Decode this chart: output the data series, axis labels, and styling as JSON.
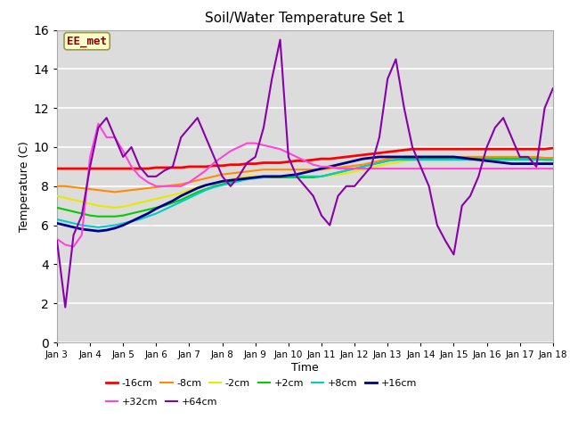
{
  "title": "Soil/Water Temperature Set 1",
  "xlabel": "Time",
  "ylabel": "Temperature (C)",
  "ylim": [
    0,
    16
  ],
  "yticks": [
    0,
    2,
    4,
    6,
    8,
    10,
    12,
    14,
    16
  ],
  "xtick_labels": [
    "Jan 3",
    "Jan 4",
    "Jan 5",
    "Jan 6",
    "Jan 7",
    "Jan 8",
    "Jan 9",
    "Jan 10",
    "Jan 11",
    "Jan 12",
    "Jan 13",
    "Jan 14",
    "Jan 15",
    "Jan 16",
    "Jan 17",
    "Jan 18"
  ],
  "bg_color": "#dcdcdc",
  "annotation_text": "EE_met",
  "annotation_color": "#8b0000",
  "annotation_bg": "#ffffcc",
  "colors": {
    "-16cm": "#ff0000",
    "-8cm": "#ff8c00",
    "-2cm": "#e8e800",
    "+2cm": "#00cc00",
    "+8cm": "#00cccc",
    "+16cm": "#00008b",
    "+32cm": "#ff44dd",
    "+64cm": "#8800aa"
  },
  "data_minus16": [
    8.9,
    8.9,
    8.9,
    8.9,
    8.9,
    8.9,
    8.9,
    8.9,
    8.9,
    8.9,
    8.9,
    8.9,
    8.95,
    8.95,
    8.95,
    8.95,
    9.0,
    9.0,
    9.0,
    9.05,
    9.05,
    9.1,
    9.1,
    9.15,
    9.15,
    9.2,
    9.2,
    9.2,
    9.25,
    9.3,
    9.3,
    9.35,
    9.4,
    9.4,
    9.45,
    9.5,
    9.55,
    9.6,
    9.65,
    9.7,
    9.75,
    9.8,
    9.85,
    9.9,
    9.9,
    9.9,
    9.9,
    9.9,
    9.9,
    9.9,
    9.9,
    9.9,
    9.9,
    9.9,
    9.9,
    9.9,
    9.9,
    9.9,
    9.9,
    9.9,
    9.95
  ],
  "data_minus8": [
    8.0,
    8.0,
    7.95,
    7.9,
    7.85,
    7.8,
    7.75,
    7.7,
    7.75,
    7.8,
    7.85,
    7.9,
    7.95,
    8.0,
    8.05,
    8.1,
    8.2,
    8.3,
    8.4,
    8.5,
    8.6,
    8.65,
    8.7,
    8.75,
    8.8,
    8.85,
    8.85,
    8.85,
    8.85,
    8.85,
    8.85,
    8.85,
    8.85,
    8.9,
    8.95,
    9.0,
    9.05,
    9.1,
    9.2,
    9.3,
    9.4,
    9.45,
    9.5,
    9.5,
    9.5,
    9.5,
    9.5,
    9.5,
    9.5,
    9.5,
    9.5,
    9.5,
    9.5,
    9.5,
    9.5,
    9.5,
    9.5,
    9.5,
    9.5,
    9.45,
    9.45
  ],
  "data_minus2": [
    7.5,
    7.4,
    7.3,
    7.2,
    7.1,
    7.0,
    6.95,
    6.9,
    6.95,
    7.05,
    7.15,
    7.25,
    7.35,
    7.45,
    7.55,
    7.65,
    7.8,
    7.95,
    8.05,
    8.15,
    8.25,
    8.35,
    8.45,
    8.5,
    8.5,
    8.5,
    8.5,
    8.5,
    8.5,
    8.5,
    8.5,
    8.5,
    8.5,
    8.55,
    8.6,
    8.65,
    8.75,
    8.85,
    8.95,
    9.05,
    9.15,
    9.2,
    9.3,
    9.35,
    9.4,
    9.4,
    9.4,
    9.4,
    9.4,
    9.4,
    9.4,
    9.4,
    9.4,
    9.4,
    9.4,
    9.4,
    9.4,
    9.4,
    9.4,
    9.35,
    9.35
  ],
  "data_plus2": [
    6.9,
    6.8,
    6.7,
    6.6,
    6.5,
    6.45,
    6.45,
    6.45,
    6.5,
    6.6,
    6.7,
    6.8,
    6.9,
    7.0,
    7.15,
    7.3,
    7.5,
    7.7,
    7.85,
    8.0,
    8.1,
    8.2,
    8.3,
    8.4,
    8.45,
    8.45,
    8.45,
    8.45,
    8.45,
    8.45,
    8.45,
    8.45,
    8.5,
    8.6,
    8.7,
    8.8,
    8.9,
    9.0,
    9.1,
    9.2,
    9.3,
    9.35,
    9.4,
    9.4,
    9.4,
    9.4,
    9.4,
    9.4,
    9.4,
    9.4,
    9.4,
    9.4,
    9.4,
    9.4,
    9.4,
    9.4,
    9.4,
    9.4,
    9.4,
    9.35,
    9.35
  ],
  "data_plus8": [
    6.3,
    6.2,
    6.1,
    6.0,
    5.95,
    5.9,
    5.95,
    6.0,
    6.1,
    6.2,
    6.3,
    6.45,
    6.6,
    6.8,
    7.0,
    7.2,
    7.4,
    7.6,
    7.8,
    7.95,
    8.05,
    8.15,
    8.25,
    8.35,
    8.4,
    8.45,
    8.5,
    8.5,
    8.5,
    8.5,
    8.5,
    8.5,
    8.5,
    8.6,
    8.7,
    8.8,
    8.9,
    9.0,
    9.1,
    9.2,
    9.3,
    9.35,
    9.35,
    9.35,
    9.35,
    9.35,
    9.35,
    9.35,
    9.35,
    9.35,
    9.35,
    9.35,
    9.35,
    9.35,
    9.35,
    9.35,
    9.35,
    9.35,
    9.35,
    9.35,
    9.35
  ],
  "data_plus16": [
    6.1,
    6.0,
    5.9,
    5.8,
    5.75,
    5.7,
    5.75,
    5.85,
    6.0,
    6.2,
    6.4,
    6.6,
    6.85,
    7.05,
    7.25,
    7.5,
    7.7,
    7.9,
    8.05,
    8.15,
    8.25,
    8.3,
    8.35,
    8.4,
    8.45,
    8.5,
    8.5,
    8.5,
    8.55,
    8.6,
    8.7,
    8.8,
    8.9,
    9.0,
    9.1,
    9.2,
    9.3,
    9.4,
    9.45,
    9.5,
    9.5,
    9.5,
    9.5,
    9.5,
    9.5,
    9.5,
    9.5,
    9.5,
    9.5,
    9.45,
    9.4,
    9.35,
    9.3,
    9.25,
    9.2,
    9.15,
    9.15,
    9.15,
    9.15,
    9.15,
    9.15
  ],
  "data_plus32": [
    5.3,
    5.0,
    4.9,
    5.5,
    9.5,
    11.2,
    10.5,
    10.5,
    9.8,
    9.0,
    8.5,
    8.2,
    8.0,
    8.0,
    8.0,
    8.0,
    8.2,
    8.5,
    8.8,
    9.2,
    9.5,
    9.8,
    10.0,
    10.2,
    10.2,
    10.1,
    10.0,
    9.9,
    9.7,
    9.5,
    9.3,
    9.1,
    9.0,
    9.0,
    8.9,
    8.9,
    8.9,
    8.9,
    8.9,
    8.9,
    8.9,
    8.9,
    8.9,
    8.9,
    8.9,
    8.9,
    8.9,
    8.9,
    8.9,
    8.9,
    8.9,
    8.9,
    8.9,
    8.9,
    8.9,
    8.9,
    8.9,
    8.9,
    8.9,
    8.9,
    8.9
  ],
  "data_plus64": [
    5.2,
    1.8,
    5.5,
    6.5,
    9.0,
    11.0,
    11.5,
    10.5,
    9.5,
    10.0,
    9.0,
    8.5,
    8.5,
    8.8,
    9.0,
    10.5,
    11.0,
    11.5,
    10.5,
    9.5,
    8.5,
    8.0,
    8.5,
    9.2,
    9.5,
    11.0,
    13.5,
    15.5,
    9.5,
    8.5,
    8.0,
    7.5,
    6.5,
    6.0,
    7.5,
    8.0,
    8.0,
    8.5,
    9.0,
    10.5,
    13.5,
    14.5,
    12.0,
    10.0,
    9.0,
    8.0,
    6.0,
    5.2,
    4.5,
    7.0,
    7.5,
    8.5,
    10.0,
    11.0,
    11.5,
    10.5,
    9.5,
    9.5,
    9.0,
    12.0,
    13.0
  ]
}
